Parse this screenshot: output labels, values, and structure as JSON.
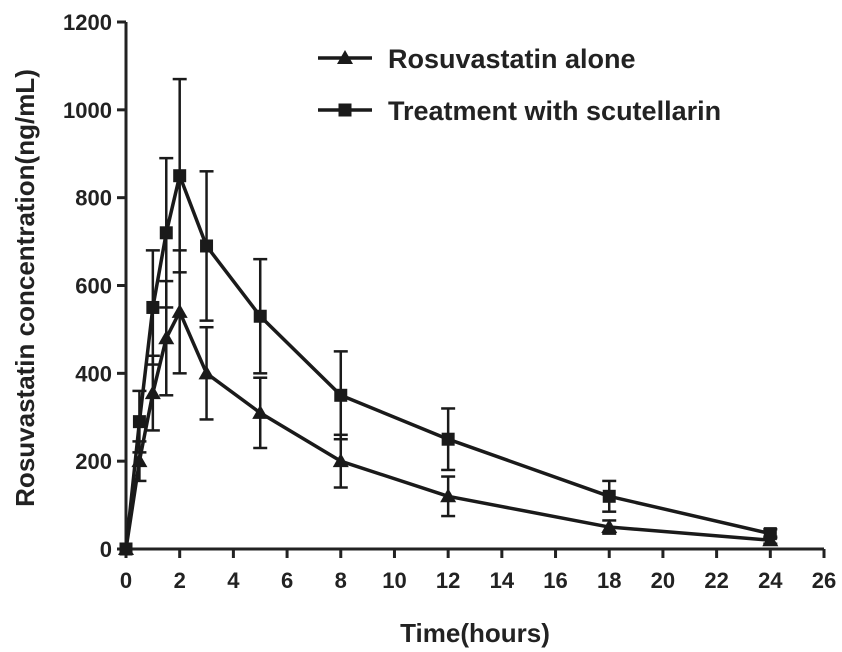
{
  "chart_data": {
    "type": "line",
    "title": "",
    "xlabel": "Time(hours)",
    "ylabel": "Rosuvastatin concentration(ng/mL)",
    "xlim": [
      0,
      26
    ],
    "ylim": [
      0,
      1200
    ],
    "xticks": [
      0,
      2,
      4,
      6,
      8,
      10,
      12,
      14,
      16,
      18,
      20,
      22,
      24,
      26
    ],
    "yticks": [
      0,
      200,
      400,
      600,
      800,
      1000,
      1200
    ],
    "grid": false,
    "legend_position": "top-right",
    "series": [
      {
        "name": "Rosuvastatin alone",
        "marker": "triangle",
        "color": "#1a1a1a",
        "x": [
          0,
          0.5,
          1,
          1.5,
          2,
          3,
          5,
          8,
          12,
          18,
          24
        ],
        "y": [
          0,
          200,
          355,
          480,
          540,
          400,
          310,
          200,
          120,
          50,
          20
        ],
        "error": [
          0,
          45,
          85,
          130,
          140,
          105,
          80,
          60,
          45,
          15,
          8
        ]
      },
      {
        "name": "Treatment with scutellarin",
        "marker": "square",
        "color": "#1a1a1a",
        "x": [
          0,
          0.5,
          1,
          1.5,
          2,
          3,
          5,
          8,
          12,
          18,
          24
        ],
        "y": [
          0,
          290,
          550,
          720,
          850,
          690,
          530,
          350,
          250,
          120,
          35
        ],
        "error": [
          0,
          70,
          130,
          170,
          220,
          170,
          130,
          100,
          70,
          35,
          10
        ]
      }
    ]
  }
}
